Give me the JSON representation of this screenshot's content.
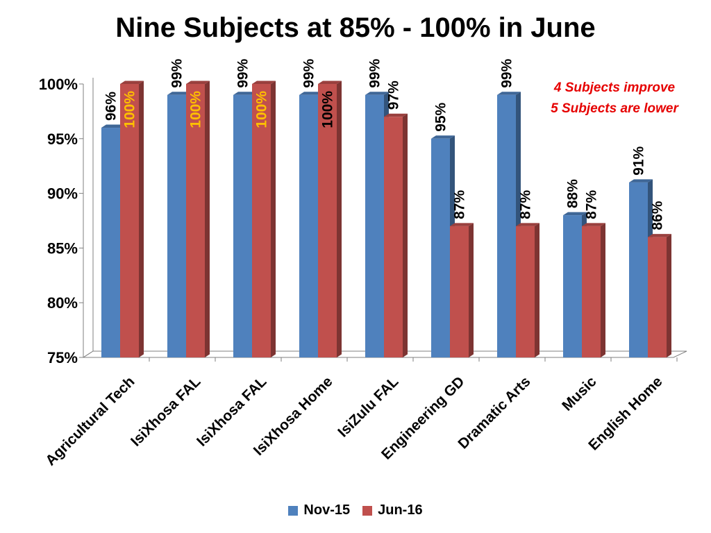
{
  "chart_data": {
    "type": "bar",
    "title": "Nine Subjects at 85% - 100% in June",
    "categories": [
      "Agricultural Tech",
      "IsiXhosa FAL",
      "IsiXhosa  FAL",
      "IsiXhosa  Home",
      "IsiZulu FAL",
      "Engineering GD",
      "Dramatic Arts",
      "Music",
      "English Home"
    ],
    "series": [
      {
        "name": "Nov-15",
        "values": [
          96,
          99,
          99,
          99,
          99,
          95,
          99,
          88,
          91
        ],
        "labels": [
          "96%",
          "99%",
          "99%",
          "99%",
          "99%",
          "95%",
          "99%",
          "88%",
          "91%"
        ],
        "color": "#4f81bd"
      },
      {
        "name": "Jun-16",
        "values": [
          100,
          100,
          100,
          100,
          97,
          87,
          87,
          87,
          86
        ],
        "labels": [
          "100%",
          "100%",
          "100%",
          "100%",
          "97%",
          "87%",
          "87%",
          "87%",
          "86%"
        ],
        "color": "#c0504d"
      }
    ],
    "y_ticks": [
      "75%",
      "80%",
      "85%",
      "90%",
      "95%",
      "100%"
    ],
    "ylim": [
      75,
      100
    ],
    "label_highlight_color": "#ffc000",
    "annotation": [
      "4 Subjects  improve",
      "5 Subjects are lower"
    ],
    "legend_position": "bottom"
  }
}
